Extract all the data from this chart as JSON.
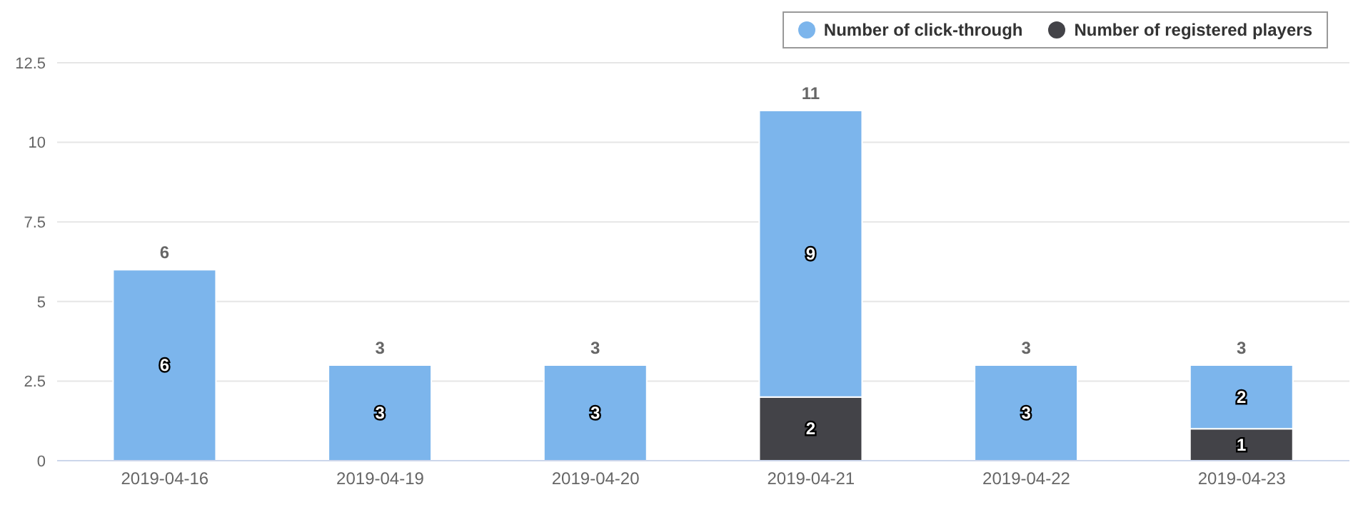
{
  "chart_data": {
    "type": "bar",
    "stacked": true,
    "categories": [
      "2019-04-16",
      "2019-04-19",
      "2019-04-20",
      "2019-04-21",
      "2019-04-22",
      "2019-04-23"
    ],
    "series": [
      {
        "name": "Number of registered players",
        "color": "#434348",
        "values": [
          0,
          0,
          0,
          2,
          0,
          1
        ],
        "value_labels": [
          null,
          null,
          null,
          "2",
          null,
          "1"
        ]
      },
      {
        "name": "Number of click-through",
        "color": "#7cb5ec",
        "values": [
          6,
          3,
          3,
          9,
          3,
          2
        ],
        "value_labels": [
          "6",
          "3",
          "3",
          "9",
          "3",
          "2"
        ]
      }
    ],
    "totals": [
      "6",
      "3",
      "3",
      "11",
      "3",
      "3"
    ],
    "ylim": [
      0,
      12.5
    ],
    "yticks": [
      0,
      2.5,
      5,
      7.5,
      10,
      12.5
    ],
    "grid": "y",
    "legend": "top right"
  }
}
